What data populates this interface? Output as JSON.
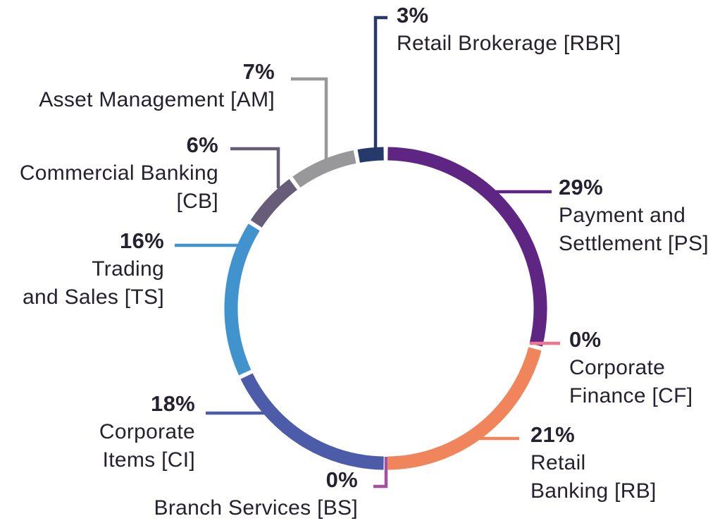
{
  "chart_data": {
    "type": "pie",
    "subtype": "donut-ring",
    "unit": "%",
    "direction": "clockwise",
    "start_angle_deg": 0,
    "background": "#FFFFFF",
    "text_color": "#26212E",
    "segments": [
      {
        "id": "ps",
        "label": "Payment and Settlement [PS]",
        "abbr": "PS",
        "value": 29,
        "pct": "29%",
        "color": "#5E2583",
        "name_lines": [
          "Payment and",
          "Settlement [PS]"
        ]
      },
      {
        "id": "cf",
        "label": "Corporate Finance [CF]",
        "abbr": "CF",
        "value": 0,
        "pct": "0%",
        "color": "#EF7590",
        "name_lines": [
          "Corporate",
          "Finance [CF]"
        ]
      },
      {
        "id": "rb",
        "label": "Retail Banking [RB]",
        "abbr": "RB",
        "value": 21,
        "pct": "21%",
        "color": "#F0845B",
        "name_lines": [
          "Retail",
          "Banking [RB]"
        ]
      },
      {
        "id": "bs",
        "label": "Branch Services [BS]",
        "abbr": "BS",
        "value": 0,
        "pct": "0%",
        "color": "#A6519D",
        "name_lines": [
          "Branch Services [BS]"
        ]
      },
      {
        "id": "ci",
        "label": "Corporate Items [CI]",
        "abbr": "CI",
        "value": 18,
        "pct": "18%",
        "color": "#4C5CA8",
        "name_lines": [
          "Corporate",
          "Items [CI]"
        ]
      },
      {
        "id": "ts",
        "label": "Trading and Sales [TS]",
        "abbr": "TS",
        "value": 16,
        "pct": "16%",
        "color": "#4193CE",
        "name_lines": [
          "Trading",
          "and Sales [TS]"
        ]
      },
      {
        "id": "cb",
        "label": "Commercial Banking [CB]",
        "abbr": "CB",
        "value": 6,
        "pct": "6%",
        "color": "#675D78",
        "name_lines": [
          "Commercial Banking",
          "[CB]"
        ]
      },
      {
        "id": "am",
        "label": "Asset Management [AM]",
        "abbr": "AM",
        "value": 7,
        "pct": "7%",
        "color": "#98989B",
        "name_lines": [
          "Asset Management [AM]"
        ]
      },
      {
        "id": "rbr",
        "label": "Retail Brokerage [RBR]",
        "abbr": "RBR",
        "value": 3,
        "pct": "3%",
        "color": "#253A6B",
        "name_lines": [
          "Retail Brokerage [RBR]"
        ]
      }
    ]
  }
}
